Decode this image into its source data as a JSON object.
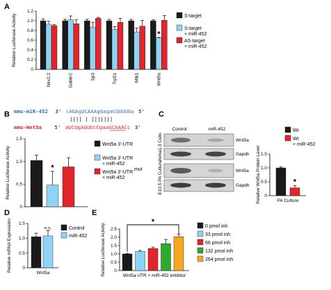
{
  "colors": {
    "black": "#1a1a1a",
    "light_blue": "#8fd3f4",
    "red": "#e3242b",
    "green": "#2eab2e",
    "orange": "#f6a623",
    "blue_seq": "#2f6db5",
    "red_seq": "#d62828"
  },
  "panels": {
    "A": "A",
    "B": "B",
    "C": "C",
    "D": "D",
    "E": "E"
  },
  "chart_data": [
    {
      "id": "A",
      "type": "bar",
      "ylabel": "Relative Luciferase Activity",
      "ylim": [
        0,
        1.2
      ],
      "yticks": [
        "0",
        "0.2",
        "0.4",
        "0.6",
        "0.8",
        "1.0",
        "1.2"
      ],
      "categories": [
        "Nkx2.2",
        "Gabbr2",
        "Sp3",
        "Trp51",
        "Mib1",
        "Wnt5a"
      ],
      "series": [
        {
          "name": "S-target",
          "color": "#1a1a1a",
          "values": [
            1.0,
            1.0,
            1.0,
            1.0,
            1.0,
            1.0
          ]
        },
        {
          "name": "S-target + miR-452",
          "color": "#8fd3f4",
          "values": [
            0.93,
            1.02,
            0.87,
            0.82,
            0.77,
            0.65
          ]
        },
        {
          "name": "AS-target + miR-452",
          "color": "#e3242b",
          "values": [
            0.9,
            0.94,
            1.05,
            0.97,
            0.89,
            1.01
          ]
        }
      ],
      "errors": [
        [
          0.04,
          0.03,
          0.03,
          0.03,
          0.03,
          0.02
        ],
        [
          0.06,
          0.08,
          0.1,
          0.06,
          0.08,
          0.01
        ],
        [
          0.02,
          0.08,
          0.02,
          0.08,
          0.12,
          0.1
        ]
      ],
      "annotations": [
        {
          "text": "*",
          "category": "Wnt5a"
        }
      ],
      "legend": [
        "S-target",
        "S-target + miR-452",
        "AS-target + miR-452"
      ]
    },
    {
      "id": "B",
      "type": "bar",
      "ylabel": "Relative Luciferase Activity",
      "ylim": [
        0,
        1.5
      ],
      "yticks": [
        "0",
        "0.5",
        "1.0",
        "1.5"
      ],
      "series": [
        {
          "name": "Wnt5a 3'-UTR",
          "color": "#1a1a1a",
          "value": 1.02,
          "error": 0.12
        },
        {
          "name": "Wnt5a 3'-UTR + miR-452",
          "color": "#8fd3f4",
          "value": 0.48,
          "error": 0.3
        },
        {
          "name": "Wnt5a 3'-UTRmut + miR-452",
          "color": "#e3242b",
          "value": 0.88,
          "error": 0.2
        }
      ],
      "annotations": [
        {
          "text": "*",
          "bar": 1
        }
      ],
      "legend": [
        "Wnt5a 3'-UTR",
        "Wnt5a 3'-UTR + miR-452",
        "Wnt5a 3'-UTRmut + miR-452"
      ]
    },
    {
      "id": "C",
      "type": "bar",
      "ylabel": "Relative Wnt5a Protein Level",
      "xlabel": "PA Culture",
      "ylim": [
        0,
        1.5
      ],
      "yticks": [
        "0",
        "0.5",
        "1.0",
        "1.5"
      ],
      "series": [
        {
          "name": "Wt",
          "color": "#1a1a1a",
          "value": 1.0,
          "error": 0.04
        },
        {
          "name": "Wt + miR-452",
          "color": "#e3242b",
          "value": 0.28,
          "error": 0.08
        }
      ],
      "annotations": [
        {
          "text": "*",
          "bar": 1
        }
      ],
      "legend": [
        "Wt",
        "Wt + miR-452"
      ]
    },
    {
      "id": "D",
      "type": "bar",
      "ylabel": "Relative mRNA Expression",
      "categories": [
        "Wnt5a"
      ],
      "ylim": [
        0,
        1.5
      ],
      "yticks": [
        "0",
        "0.5",
        "1.0",
        "1.5"
      ],
      "series": [
        {
          "name": "Control",
          "color": "#1a1a1a",
          "value": 1.05,
          "error": 0.12
        },
        {
          "name": "miR-452",
          "color": "#8fd3f4",
          "value": 1.08,
          "error": 0.18
        }
      ],
      "annotations": [
        {
          "text": "n.s.",
          "bar": 1
        }
      ],
      "legend": [
        "Control",
        "miR-452"
      ]
    },
    {
      "id": "E",
      "type": "bar",
      "ylabel": "Relative Luciferase Activity",
      "xlabel": "Wnt5a UTR + miR-452 inhibitor",
      "ylim": [
        0,
        2.5
      ],
      "yticks": [
        "0",
        "0.5",
        "1.0",
        "1.5",
        "2.0",
        "2.5"
      ],
      "series": [
        {
          "name": "0 pmol inh",
          "color": "#1a1a1a",
          "value": 1.0,
          "error": 0.03
        },
        {
          "name": "33 pmol inh",
          "color": "#8fd3f4",
          "value": 1.15,
          "error": 0.06
        },
        {
          "name": "66 pmol inh",
          "color": "#e3242b",
          "value": 1.33,
          "error": 0.08
        },
        {
          "name": "132 pmol inh",
          "color": "#2eab2e",
          "value": 1.62,
          "error": 0.25
        },
        {
          "name": "264 pmol inh",
          "color": "#f6a623",
          "value": 2.03,
          "error": 0.15
        }
      ],
      "annotations": [
        {
          "text": "*",
          "bracket": [
            0,
            4
          ]
        }
      ],
      "legend": [
        "0 pmol inh",
        "33 pmol inh",
        "66 pmol inh",
        "132 pmol inh",
        "264 pmol inh"
      ]
    }
  ],
  "panel_B_sequence": {
    "mir_label": "mmu-miR-452",
    "mir_3prime": "3'",
    "mir_seq": "cAGAgUCAAAgGagaCGUUUGu",
    "mir_5prime": "5'",
    "pairing": "||||   |  |||||||",
    "target_label": "mmu-Wnt5a",
    "target_5prime": "5'",
    "target_seq": "aUCUgAGUUcCgaaGCAAACc",
    "target_3prime": "3'",
    "mut_label_sup": "mut"
  },
  "panel_C_blot": {
    "col_labels": [
      "Control",
      "miR-452"
    ],
    "row_groups": [
      {
        "side_label": "Joma1.3 Cells",
        "bands": [
          "Wnt5a",
          "Gapdh"
        ]
      },
      {
        "side_label": "E10.5 PA Culture",
        "bands": [
          "Wnt5a",
          "Gapdh"
        ]
      }
    ]
  }
}
